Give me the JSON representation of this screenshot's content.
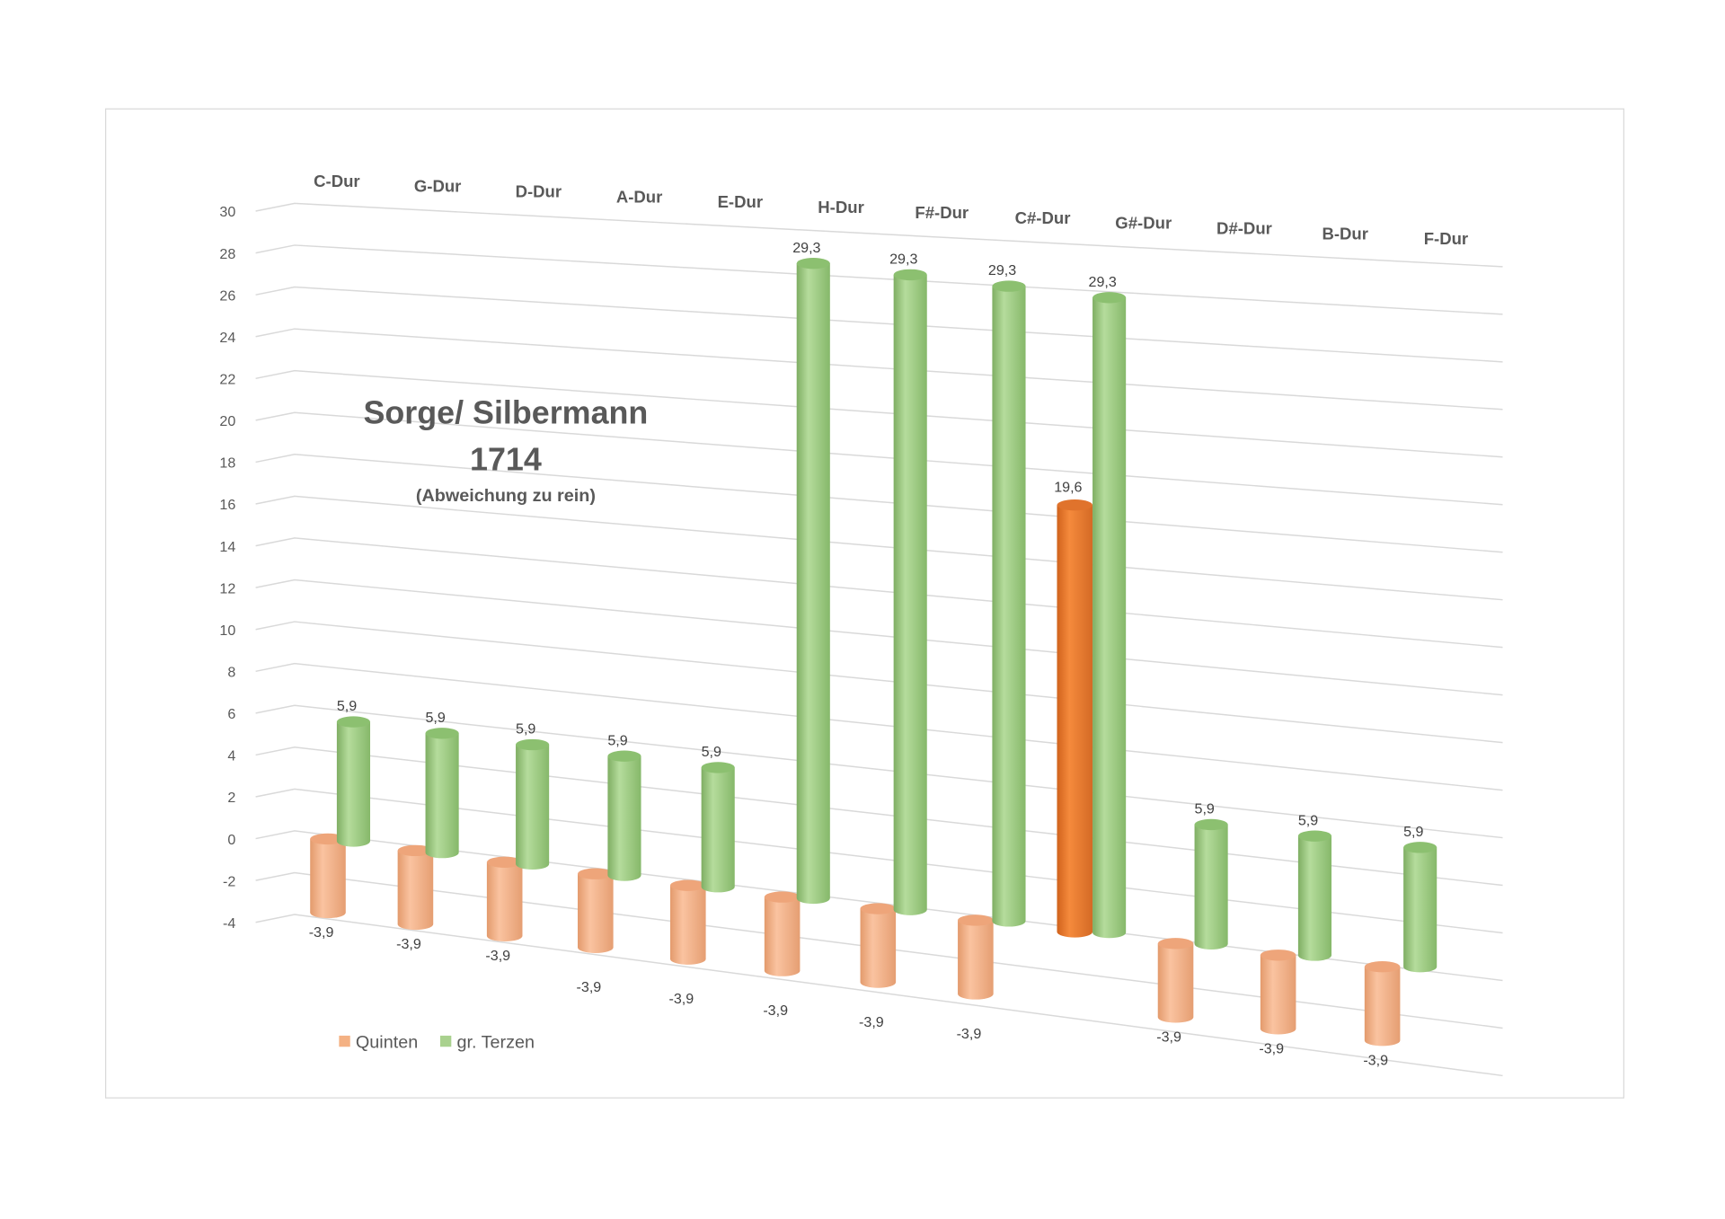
{
  "chart_data": {
    "type": "bar",
    "title": "Sorge/ Silbermann",
    "title_line2": "1714",
    "subtitle": "(Abweichung zu rein)",
    "categories": [
      "C-Dur",
      "G-Dur",
      "D-Dur",
      "A-Dur",
      "E-Dur",
      "H-Dur",
      "F#-Dur",
      "C#-Dur",
      "G#-Dur",
      "D#-Dur",
      "B-Dur",
      "F-Dur"
    ],
    "series": [
      {
        "name": "Quinten",
        "values": [
          -3.9,
          -3.9,
          -3.9,
          -3.9,
          -3.9,
          -3.9,
          -3.9,
          -3.9,
          19.6,
          -3.9,
          -3.9,
          -3.9
        ],
        "color": "#f4b183",
        "highlight_color": "#ed7d31"
      },
      {
        "name": "gr. Terzen",
        "values": [
          5.9,
          5.9,
          5.9,
          5.9,
          5.9,
          29.3,
          29.3,
          29.3,
          29.3,
          5.9,
          5.9,
          5.9
        ],
        "color": "#a9d18e"
      }
    ],
    "yticks": [
      -4,
      -2,
      0,
      2,
      4,
      6,
      8,
      10,
      12,
      14,
      16,
      18,
      20,
      22,
      24,
      26,
      28,
      30
    ],
    "ylim": [
      -4,
      30
    ],
    "grid": true,
    "legend": "bottom-left",
    "projection": "3d-perspective"
  }
}
